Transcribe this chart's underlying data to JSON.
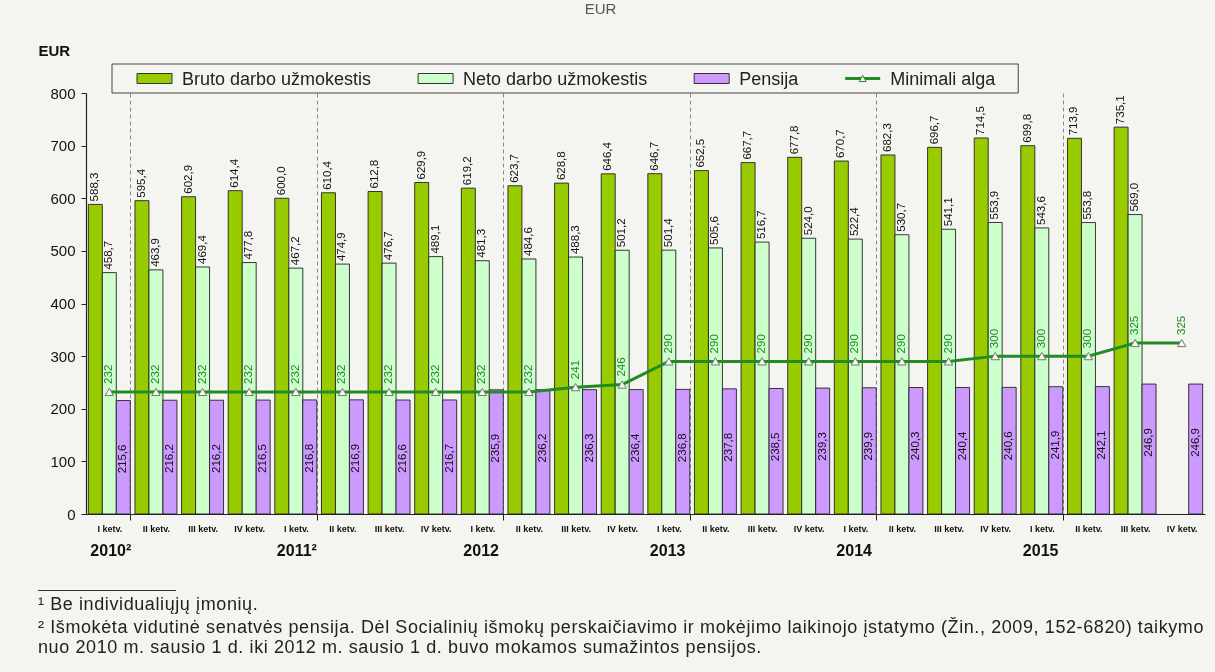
{
  "chart_data": {
    "type": "bar",
    "title": "EUR",
    "ylabel": "EUR",
    "categories": [
      "I ketv.",
      "II ketv.",
      "III ketv.",
      "IV ketv.",
      "I ketv.",
      "II ketv.",
      "III ketv.",
      "IV ketv.",
      "I ketv.",
      "II ketv.",
      "III ketv.",
      "IV ketv.",
      "I ketv.",
      "II ketv.",
      "III ketv.",
      "IV ketv.",
      "I ketv.",
      "II ketv.",
      "III ketv.",
      "IV ketv.",
      "I ketv.",
      "II ketv.",
      "III ketv.",
      "IV ketv."
    ],
    "series": [
      {
        "name": "Bruto darbo užmokestis",
        "color": "#99cc00",
        "values": [
          588.3,
          595.4,
          602.9,
          614.4,
          600.0,
          610.4,
          612.8,
          629.9,
          619.2,
          623.7,
          628.8,
          646.4,
          646.7,
          652.5,
          667.7,
          677.8,
          670.7,
          682.3,
          696.7,
          714.5,
          699.8,
          713.9,
          735.1,
          null
        ],
        "value_labels": [
          "588,3",
          "595,4",
          "602,9",
          "614,4",
          "600,0",
          "610,4",
          "612,8",
          "629,9",
          "619,2",
          "623,7",
          "628,8",
          "646,4",
          "646,7",
          "652,5",
          "667,7",
          "677,8",
          "670,7",
          "682,3",
          "696,7",
          "714,5",
          "699,8",
          "713,9",
          "735,1",
          null
        ]
      },
      {
        "name": "Neto darbo užmokestis",
        "color": "#ccffcc",
        "values": [
          458.7,
          463.9,
          469.4,
          477.8,
          467.2,
          474.9,
          476.7,
          489.1,
          481.3,
          484.6,
          488.3,
          501.2,
          501.4,
          505.6,
          516.7,
          524.0,
          522.4,
          530.7,
          541.1,
          553.9,
          543.6,
          553.8,
          569.0,
          null
        ],
        "value_labels": [
          "458,7",
          "463,9",
          "469,4",
          "477,8",
          "467,2",
          "474,9",
          "476,7",
          "489,1",
          "481,3",
          "484,6",
          "488,3",
          "501,2",
          "501,4",
          "505,6",
          "516,7",
          "524,0",
          "522,4",
          "530,7",
          "541,1",
          "553,9",
          "543,6",
          "553,8",
          "569,0",
          null
        ]
      },
      {
        "name": "Pensija",
        "color": "#cc99ff",
        "values": [
          215.6,
          216.2,
          216.2,
          216.5,
          216.8,
          216.9,
          216.6,
          216.7,
          235.9,
          236.2,
          236.3,
          236.4,
          236.8,
          237.8,
          238.5,
          239.3,
          239.9,
          240.3,
          240.4,
          240.6,
          241.9,
          242.1,
          246.9,
          246.9
        ],
        "value_labels": [
          "215,6",
          "216,2",
          "216,2",
          "216,5",
          "216,8",
          "216,9",
          "216,6",
          "216,7",
          "235,9",
          "236,2",
          "236,3",
          "236,4",
          "236,8",
          "237,8",
          "238,5",
          "239,3",
          "239,9",
          "240,3",
          "240,4",
          "240,6",
          "241,9",
          "242,1",
          "246,9",
          "246,9"
        ]
      },
      {
        "name": "Minimali alga",
        "type": "line",
        "color": "#228b22",
        "values": [
          232,
          232,
          232,
          232,
          232,
          232,
          232,
          232,
          232,
          232,
          241,
          246,
          290,
          290,
          290,
          290,
          290,
          290,
          290,
          300,
          300,
          300,
          325,
          325
        ],
        "value_labels": [
          "232",
          "232",
          "232",
          "232",
          "232",
          "232",
          "232",
          "232",
          "232",
          "232",
          "241",
          "246",
          "290",
          "290",
          "290",
          "290",
          "290",
          "290",
          "290",
          "300",
          "300",
          "300",
          "325",
          "325"
        ]
      }
    ],
    "ylim": [
      0,
      800
    ],
    "yticks": [
      0,
      100,
      200,
      300,
      400,
      500,
      600,
      700,
      800
    ],
    "grid": "x",
    "legend": "top",
    "marker": "triangle",
    "annotations": [
      "2010²",
      "2011²",
      "2012",
      "2013",
      "2014",
      "2015",
      "¹ Be individualiųjų įmonių.",
      "² Išmokėta vidutinė senatvės pensija. Dėl Socialinių išmokų perskaičiavimo ir mokėjimo laikinojo įstatymo (Žin., 2009, 152-6820) taikymo nuo 2010 m. sausio 1 d. iki 2012 m. sausio 1 d. buvo mokamos sumažintos pensijos."
    ]
  }
}
